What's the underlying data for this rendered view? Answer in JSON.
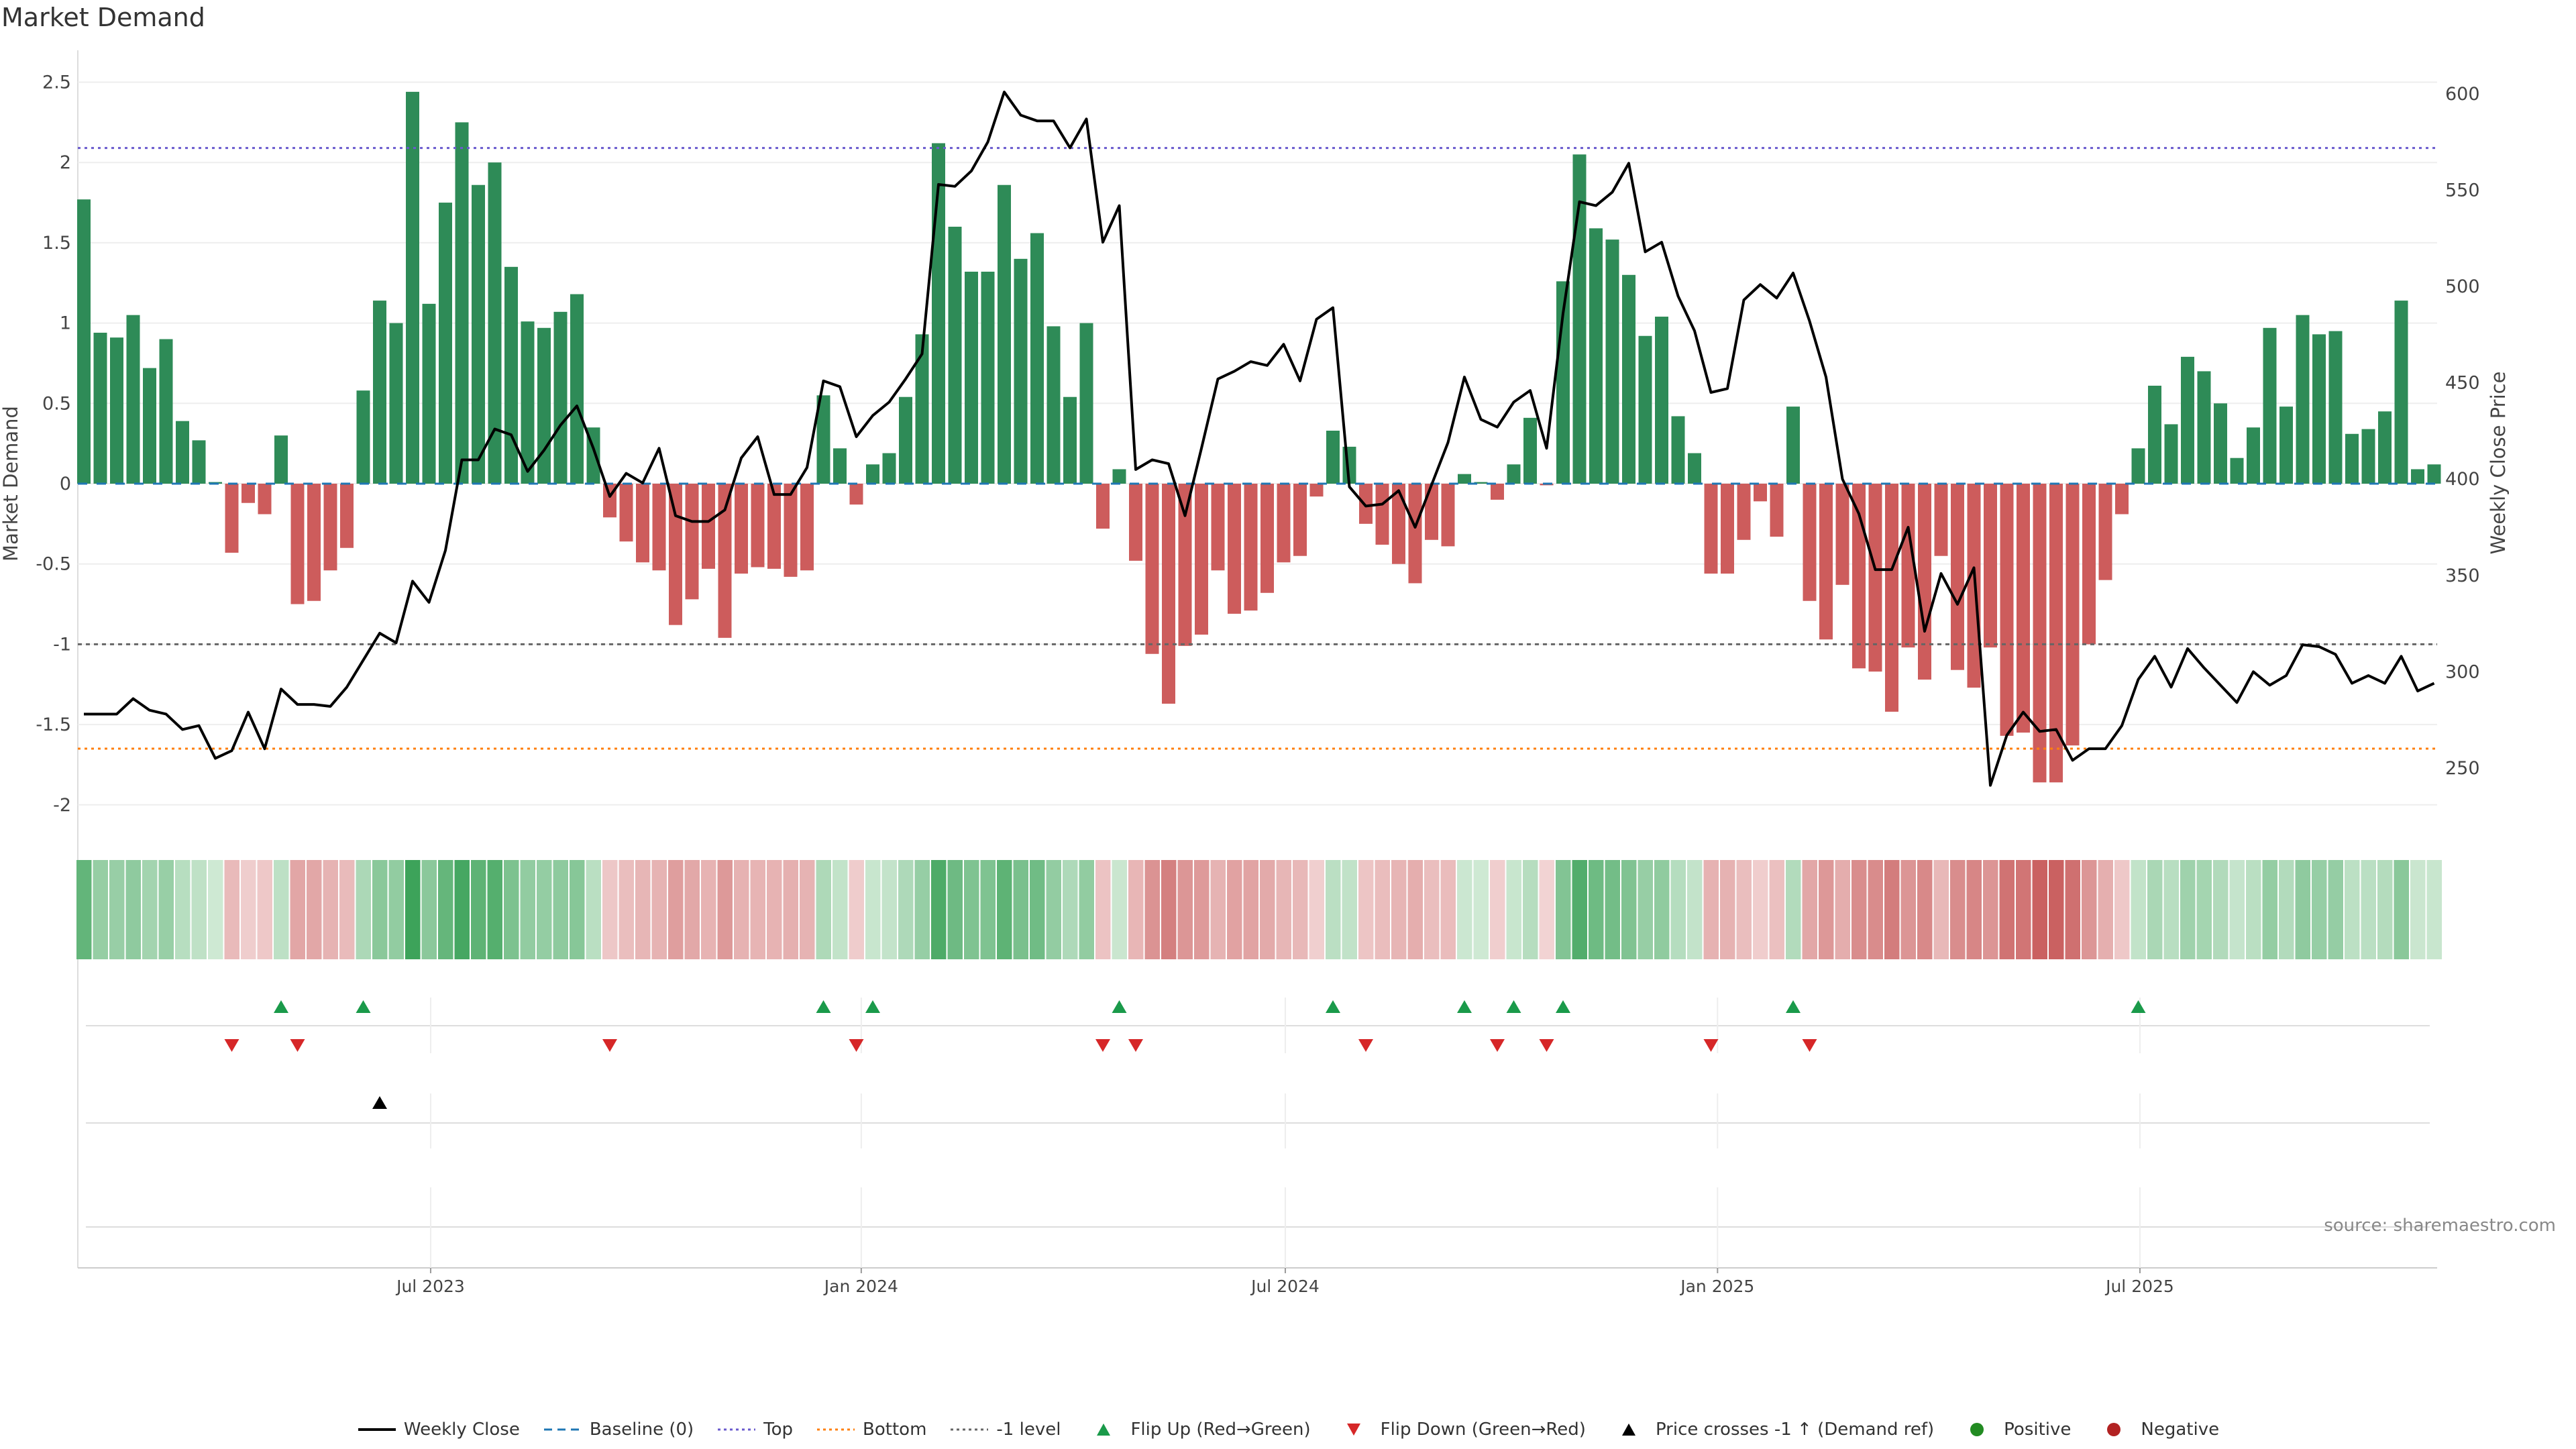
{
  "title": "Market Demand",
  "source": "source: sharemaestro.com",
  "colors": {
    "positive": "#2e8b57",
    "negative": "#cd5c5c",
    "line": "#000000",
    "baseline": "#1f77b4",
    "top": "#6a5acd",
    "bottom": "#ff7f0e",
    "minus1": "#666666",
    "flip_up": "#1a9a4a",
    "flip_down": "#d62728",
    "cross": "#000000",
    "pos_dot": "#228b22",
    "neg_dot": "#b22222"
  },
  "chart_data": {
    "type": "bar",
    "title": "Market Demand",
    "ylabel": "Market Demand",
    "y2label": "Weekly Close Price",
    "ylim": [
      -2.2,
      2.65
    ],
    "y2lim": [
      230,
      610
    ],
    "yticks": [
      "2.5",
      "2",
      "1.5",
      "1",
      "0.5",
      "0",
      "-0.5",
      "-1",
      "-1.5",
      "-2"
    ],
    "y2ticks": [
      "600",
      "550",
      "500",
      "450",
      "400",
      "350",
      "300",
      "250"
    ],
    "xticks": [
      {
        "label": "Jul 2023",
        "index": 21.1
      },
      {
        "label": "Jan 2024",
        "index": 47.3
      },
      {
        "label": "Jul 2024",
        "index": 73.1
      },
      {
        "label": "Jan 2025",
        "index": 99.4
      },
      {
        "label": "Jul 2025",
        "index": 125.1
      }
    ],
    "levels": {
      "baseline": 0,
      "top": 2.09,
      "bottom": -1.65,
      "minus1": -1
    },
    "demand": [
      1.77,
      0.94,
      0.91,
      1.05,
      0.72,
      0.9,
      0.39,
      0.27,
      0.01,
      -0.43,
      -0.12,
      -0.19,
      0.3,
      -0.75,
      -0.73,
      -0.54,
      -0.4,
      0.58,
      1.14,
      1.0,
      2.44,
      1.12,
      1.75,
      2.25,
      1.86,
      2.0,
      1.35,
      1.01,
      0.97,
      1.07,
      1.18,
      0.35,
      -0.21,
      -0.36,
      -0.49,
      -0.54,
      -0.88,
      -0.72,
      -0.53,
      -0.96,
      -0.56,
      -0.52,
      -0.53,
      -0.58,
      -0.54,
      0.55,
      0.22,
      -0.13,
      0.12,
      0.19,
      0.54,
      0.93,
      2.12,
      1.6,
      1.32,
      1.32,
      1.86,
      1.4,
      1.56,
      0.98,
      0.54,
      1.0,
      -0.28,
      0.09,
      -0.48,
      -1.06,
      -1.37,
      -1.01,
      -0.94,
      -0.54,
      -0.81,
      -0.79,
      -0.68,
      -0.49,
      -0.45,
      -0.08,
      0.33,
      0.23,
      -0.25,
      -0.38,
      -0.5,
      -0.62,
      -0.35,
      -0.39,
      0.06,
      0.01,
      -0.1,
      0.12,
      0.41,
      -0.01,
      1.26,
      2.05,
      1.59,
      1.52,
      1.3,
      0.92,
      1.04,
      0.42,
      0.19,
      -0.56,
      -0.56,
      -0.35,
      -0.11,
      -0.33,
      0.48,
      -0.73,
      -0.97,
      -0.63,
      -1.15,
      -1.17,
      -1.42,
      -1.02,
      -1.22,
      -0.45,
      -1.16,
      -1.27,
      -1.02,
      -1.57,
      -1.55,
      -1.86,
      -1.86,
      -1.63,
      -1.0,
      -0.6,
      -0.19,
      0.22,
      0.61,
      0.37,
      0.79,
      0.7,
      0.5,
      0.16,
      0.35,
      0.97,
      0.48,
      1.05,
      0.93,
      0.95,
      0.31,
      0.34,
      0.45,
      1.14,
      0.09,
      0.12
    ],
    "weekly_close": [
      278,
      278,
      278,
      286,
      280,
      278,
      270,
      272,
      255,
      259,
      279,
      260,
      291,
      283,
      283,
      282,
      292,
      306,
      320,
      315,
      347,
      336,
      363,
      410,
      410,
      426,
      423,
      404,
      415,
      428,
      438,
      416,
      391,
      403,
      398,
      416,
      381,
      378,
      378,
      384,
      411,
      422,
      392,
      392,
      406,
      451,
      448,
      422,
      433,
      440,
      452,
      465,
      553,
      552,
      560,
      575,
      601,
      589,
      586,
      586,
      572,
      587,
      523,
      542,
      405,
      410,
      408,
      381,
      416,
      452,
      456,
      461,
      459,
      470,
      451,
      483,
      489,
      396,
      386,
      387,
      394,
      375,
      397,
      419,
      453,
      431,
      427,
      440,
      446,
      416,
      486,
      544,
      542,
      549,
      564,
      518,
      523,
      495,
      477,
      445,
      447,
      493,
      501,
      494,
      507,
      482,
      453,
      400,
      382,
      353,
      353,
      375,
      321,
      351,
      335,
      354,
      241,
      267,
      279,
      269,
      270,
      254,
      260,
      260,
      272,
      296,
      308,
      292,
      312,
      302,
      293,
      284,
      300,
      293,
      298,
      314,
      313,
      309,
      294,
      298,
      294,
      308,
      290,
      294
    ],
    "flip_up_index": [
      12,
      17,
      45,
      48,
      63,
      76,
      84,
      87,
      90,
      104,
      125
    ],
    "flip_down_index": [
      9,
      13,
      32,
      47,
      62,
      64,
      78,
      86,
      89,
      99,
      105
    ],
    "price_cross_index": [
      18
    ]
  },
  "legend": [
    {
      "label": "Weekly Close",
      "type": "line"
    },
    {
      "label": "Baseline (0)",
      "type": "baseline"
    },
    {
      "label": "Top",
      "type": "top"
    },
    {
      "label": "Bottom",
      "type": "bottom"
    },
    {
      "label": "-1 level",
      "type": "minus1"
    },
    {
      "label": "Flip Up (Red→Green)",
      "type": "flip_up"
    },
    {
      "label": "Flip Down (Green→Red)",
      "type": "flip_down"
    },
    {
      "label": "Price crosses -1 ↑ (Demand ref)",
      "type": "cross"
    },
    {
      "label": "Positive",
      "type": "pos_dot"
    },
    {
      "label": "Negative",
      "type": "neg_dot"
    }
  ]
}
